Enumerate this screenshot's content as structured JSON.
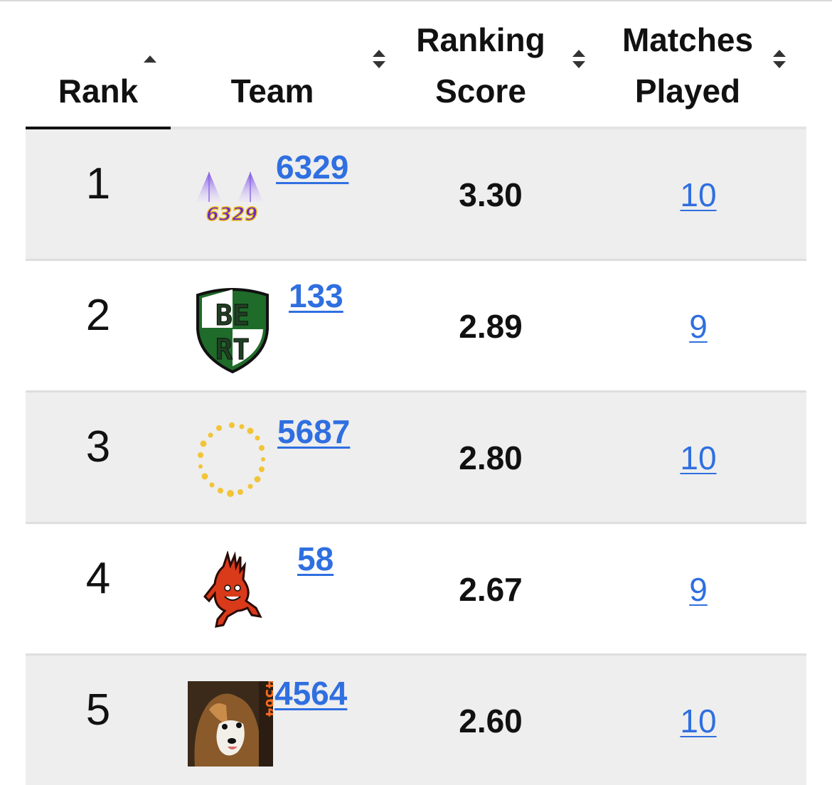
{
  "table": {
    "headers": {
      "rank": "Rank",
      "team": "Team",
      "ranking_score_line1": "Ranking",
      "ranking_score_line2": "Score",
      "matches_played_line1": "Matches",
      "matches_played_line2": "Played"
    },
    "sorted_by": "Rank",
    "sort_direction": "ascending",
    "rows": [
      {
        "rank": "1",
        "team": "6329",
        "score": "3.30",
        "played": "10"
      },
      {
        "rank": "2",
        "team": "133",
        "score": "2.89",
        "played": "9"
      },
      {
        "rank": "3",
        "team": "5687",
        "score": "2.80",
        "played": "10"
      },
      {
        "rank": "4",
        "team": "58",
        "score": "2.67",
        "played": "9"
      },
      {
        "rank": "5",
        "team": "4564",
        "score": "2.60",
        "played": "10"
      }
    ]
  },
  "logos": {
    "team_6329": {
      "text": "6329",
      "icon": "purple-peaks-logo"
    },
    "team_133": {
      "text_top": "BE",
      "text_bottom": "RT",
      "icon": "green-shield-logo"
    },
    "team_5687": {
      "icon": "gold-dotted-ring-logo"
    },
    "team_58": {
      "icon": "red-flame-mascot-logo"
    },
    "team_4564": {
      "text": "4564",
      "icon": "sheltie-dog-photo-logo"
    }
  },
  "colors": {
    "link": "#2f6fe0",
    "row_shade": "#eeeeee",
    "active_sort_underline": "#111111"
  }
}
